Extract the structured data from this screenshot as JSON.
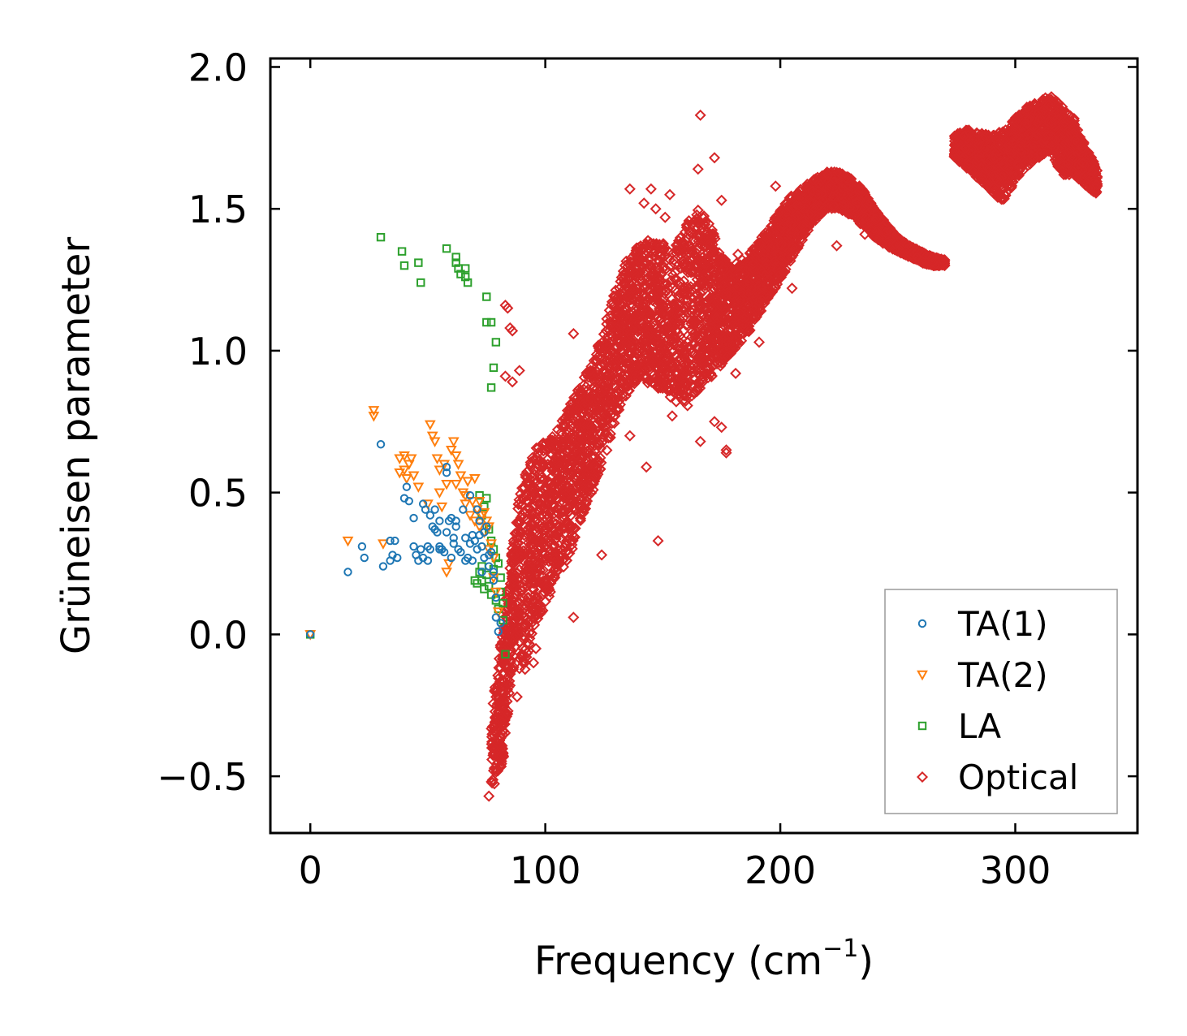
{
  "chart_data": {
    "type": "scatter",
    "title": "",
    "xlabel": "Frequency (cm",
    "xlabel_sup": "−1",
    "xlabel_close": ")",
    "ylabel": "Grüneisen parameter",
    "xlim": [
      -17,
      352
    ],
    "ylim": [
      -0.7,
      2.03
    ],
    "xticks": [
      0,
      100,
      200,
      300
    ],
    "yticks": [
      -0.5,
      0.0,
      0.5,
      1.0,
      1.5,
      2.0
    ],
    "xtick_labels": [
      "0",
      "100",
      "200",
      "300"
    ],
    "ytick_labels": [
      "−0.5",
      "0.0",
      "0.5",
      "1.0",
      "1.5",
      "2.0"
    ],
    "legend_position": "lower-right",
    "series": [
      {
        "name": "TA(1)",
        "marker": "circle",
        "color": "#1f77b4",
        "points": [
          [
            0,
            0.0
          ],
          [
            16,
            0.22
          ],
          [
            22,
            0.31
          ],
          [
            23,
            0.27
          ],
          [
            30,
            0.67
          ],
          [
            31,
            0.24
          ],
          [
            34,
            0.33
          ],
          [
            34,
            0.26
          ],
          [
            35,
            0.28
          ],
          [
            36,
            0.33
          ],
          [
            40,
            0.48
          ],
          [
            41,
            0.52
          ],
          [
            42,
            0.47
          ],
          [
            44,
            0.31
          ],
          [
            45,
            0.28
          ],
          [
            46,
            0.26
          ],
          [
            47,
            0.3
          ],
          [
            48,
            0.46
          ],
          [
            48,
            0.27
          ],
          [
            49,
            0.44
          ],
          [
            50,
            0.31
          ],
          [
            50,
            0.26
          ],
          [
            51,
            0.42
          ],
          [
            52,
            0.38
          ],
          [
            53,
            0.44
          ],
          [
            54,
            0.36
          ],
          [
            55,
            0.31
          ],
          [
            55,
            0.4
          ],
          [
            56,
            0.3
          ],
          [
            57,
            0.29
          ],
          [
            58,
            0.36
          ],
          [
            58,
            0.59
          ],
          [
            59,
            0.4
          ],
          [
            60,
            0.41
          ],
          [
            60,
            0.27
          ],
          [
            61,
            0.34
          ],
          [
            62,
            0.38
          ],
          [
            63,
            0.3
          ],
          [
            64,
            0.29
          ],
          [
            65,
            0.44
          ],
          [
            66,
            0.34
          ],
          [
            66,
            0.26
          ],
          [
            67,
            0.27
          ],
          [
            68,
            0.32
          ],
          [
            68,
            0.49
          ],
          [
            69,
            0.35
          ],
          [
            70,
            0.33
          ],
          [
            71,
            0.3
          ],
          [
            72,
            0.35
          ],
          [
            73,
            0.31
          ],
          [
            74,
            0.36
          ],
          [
            74,
            0.27
          ],
          [
            75,
            0.38
          ],
          [
            76,
            0.24
          ],
          [
            77,
            0.29
          ],
          [
            78,
            0.22
          ],
          [
            79,
            0.06
          ],
          [
            80,
            0.01
          ],
          [
            58,
            0.57
          ],
          [
            62,
            0.4
          ],
          [
            53,
            0.37
          ],
          [
            44,
            0.41
          ],
          [
            37,
            0.27
          ],
          [
            51,
            0.3
          ],
          [
            71,
            0.44
          ],
          [
            72,
            0.4
          ],
          [
            76,
            0.28
          ],
          [
            78,
            0.19
          ],
          [
            79,
            0.13
          ],
          [
            81,
            0.04
          ],
          [
            55,
            0.3
          ],
          [
            61,
            0.32
          ],
          [
            69,
            0.26
          ],
          [
            73,
            0.22
          ]
        ]
      },
      {
        "name": "TA(2)",
        "marker": "triangle-down",
        "color": "#ff7f0e",
        "points": [
          [
            0,
            0.0
          ],
          [
            16,
            0.33
          ],
          [
            27,
            0.79
          ],
          [
            27,
            0.77
          ],
          [
            31,
            0.32
          ],
          [
            38,
            0.62
          ],
          [
            38,
            0.57
          ],
          [
            40,
            0.58
          ],
          [
            40,
            0.63
          ],
          [
            41,
            0.55
          ],
          [
            42,
            0.6
          ],
          [
            43,
            0.62
          ],
          [
            44,
            0.56
          ],
          [
            46,
            0.52
          ],
          [
            50,
            0.46
          ],
          [
            51,
            0.74
          ],
          [
            52,
            0.7
          ],
          [
            53,
            0.68
          ],
          [
            54,
            0.62
          ],
          [
            55,
            0.58
          ],
          [
            55,
            0.5
          ],
          [
            56,
            0.45
          ],
          [
            57,
            0.6
          ],
          [
            58,
            0.53
          ],
          [
            58,
            0.22
          ],
          [
            59,
            0.25
          ],
          [
            60,
            0.65
          ],
          [
            61,
            0.68
          ],
          [
            62,
            0.63
          ],
          [
            63,
            0.6
          ],
          [
            64,
            0.56
          ],
          [
            65,
            0.5
          ],
          [
            66,
            0.46
          ],
          [
            67,
            0.54
          ],
          [
            68,
            0.42
          ],
          [
            69,
            0.47
          ],
          [
            70,
            0.4
          ],
          [
            70,
            0.55
          ],
          [
            71,
            0.44
          ],
          [
            72,
            0.38
          ],
          [
            73,
            0.42
          ],
          [
            74,
            0.36
          ],
          [
            75,
            0.4
          ],
          [
            76,
            0.3
          ],
          [
            77,
            0.32
          ],
          [
            78,
            0.2
          ],
          [
            79,
            0.15
          ],
          [
            80,
            0.08
          ],
          [
            62,
            0.53
          ],
          [
            66,
            0.49
          ],
          [
            72,
            0.47
          ],
          [
            74,
            0.43
          ],
          [
            76,
            0.38
          ],
          [
            78,
            0.27
          ]
        ]
      },
      {
        "name": "LA",
        "marker": "square",
        "color": "#2ca02c",
        "points": [
          [
            0,
            0.0
          ],
          [
            30,
            1.4
          ],
          [
            39,
            1.35
          ],
          [
            40,
            1.3
          ],
          [
            46,
            1.31
          ],
          [
            47,
            1.24
          ],
          [
            58,
            1.36
          ],
          [
            62,
            1.33
          ],
          [
            62,
            1.31
          ],
          [
            63,
            1.29
          ],
          [
            64,
            1.27
          ],
          [
            66,
            1.29
          ],
          [
            66,
            1.26
          ],
          [
            67,
            1.24
          ],
          [
            75,
            1.19
          ],
          [
            75,
            1.1
          ],
          [
            77,
            1.1
          ],
          [
            79,
            1.03
          ],
          [
            78,
            0.94
          ],
          [
            77,
            0.87
          ],
          [
            70,
            0.19
          ],
          [
            71,
            0.18
          ],
          [
            72,
            0.22
          ],
          [
            73,
            0.24
          ],
          [
            73,
            0.19
          ],
          [
            74,
            0.16
          ],
          [
            75,
            0.21
          ],
          [
            76,
            0.17
          ],
          [
            77,
            0.14
          ],
          [
            78,
            0.23
          ],
          [
            79,
            0.12
          ],
          [
            80,
            0.09
          ],
          [
            81,
            0.15
          ],
          [
            82,
            0.05
          ],
          [
            83,
            -0.07
          ],
          [
            74,
            0.45
          ],
          [
            75,
            0.48
          ],
          [
            76,
            0.37
          ],
          [
            77,
            0.33
          ],
          [
            78,
            0.3
          ],
          [
            79,
            0.27
          ],
          [
            80,
            0.25
          ],
          [
            81,
            0.2
          ],
          [
            82,
            0.11
          ],
          [
            72,
            0.49
          ],
          [
            73,
            0.42
          ]
        ]
      },
      {
        "name": "Optical",
        "marker": "diamond",
        "color": "#d62728",
        "bands": [
          {
            "x": [
              77,
              82,
              85,
              88,
              91,
              95,
              100,
              105,
              110,
              115,
              120,
              125,
              130,
              135,
              140,
              145,
              150,
              155,
              160,
              165,
              170,
              175,
              180,
              185,
              190,
              195,
              200,
              205,
              210,
              215,
              220,
              225,
              230,
              235,
              240,
              245,
              250,
              255,
              260,
              265,
              270
            ],
            "lo": [
              -0.57,
              -0.45,
              -0.2,
              -0.05,
              -0.15,
              0.02,
              0.1,
              0.2,
              0.26,
              0.4,
              0.5,
              0.62,
              0.74,
              0.85,
              0.9,
              0.88,
              0.86,
              0.82,
              0.8,
              0.85,
              0.9,
              0.95,
              1.0,
              1.05,
              1.1,
              1.18,
              1.25,
              1.32,
              1.4,
              1.46,
              1.5,
              1.5,
              1.47,
              1.44,
              1.4,
              1.37,
              1.35,
              1.33,
              1.31,
              1.3,
              1.3
            ],
            "hi": [
              -0.3,
              0.05,
              0.25,
              0.45,
              0.55,
              0.65,
              0.68,
              0.72,
              0.8,
              0.88,
              0.98,
              1.08,
              1.22,
              1.35,
              1.38,
              1.4,
              1.38,
              1.36,
              1.45,
              1.5,
              1.45,
              1.33,
              1.3,
              1.33,
              1.38,
              1.43,
              1.5,
              1.55,
              1.58,
              1.61,
              1.63,
              1.63,
              1.61,
              1.57,
              1.5,
              1.45,
              1.4,
              1.37,
              1.35,
              1.33,
              1.32
            ],
            "n": 5200,
            "seed": 7
          },
          {
            "x": [
              274,
              280,
              290,
              295,
              300,
              305,
              310,
              315,
              320,
              325,
              330,
              335
            ],
            "lo": [
              1.68,
              1.64,
              1.56,
              1.52,
              1.6,
              1.65,
              1.68,
              1.7,
              1.62,
              1.62,
              1.58,
              1.55
            ],
            "hi": [
              1.76,
              1.78,
              1.76,
              1.78,
              1.82,
              1.86,
              1.88,
              1.9,
              1.86,
              1.82,
              1.72,
              1.64
            ],
            "n": 1600,
            "seed": 13
          }
        ],
        "points": [
          [
            166,
            1.83
          ],
          [
            172,
            1.68
          ],
          [
            165,
            1.64
          ],
          [
            136,
            1.57
          ],
          [
            145,
            1.57
          ],
          [
            153,
            1.55
          ],
          [
            175,
            1.53
          ],
          [
            198,
            1.58
          ],
          [
            142,
            1.52
          ],
          [
            147,
            1.5
          ],
          [
            151,
            1.47
          ],
          [
            83,
            1.16
          ],
          [
            85,
            1.08
          ],
          [
            86,
            1.07
          ],
          [
            83,
            0.91
          ],
          [
            86,
            0.89
          ],
          [
            89,
            0.93
          ],
          [
            112,
            1.06
          ],
          [
            128,
            1.0
          ],
          [
            125,
            0.95
          ],
          [
            148,
            0.33
          ],
          [
            143,
            0.59
          ],
          [
            124,
            0.28
          ],
          [
            177,
            0.65
          ],
          [
            177,
            0.64
          ],
          [
            166,
            0.68
          ],
          [
            172,
            0.75
          ],
          [
            175,
            0.73
          ],
          [
            154,
            0.77
          ],
          [
            136,
            0.7
          ],
          [
            131,
            0.8
          ],
          [
            119,
            0.52
          ],
          [
            109,
            0.29
          ],
          [
            104,
            0.2
          ],
          [
            112,
            0.06
          ],
          [
            96,
            -0.05
          ],
          [
            92,
            -0.08
          ],
          [
            95,
            -0.1
          ],
          [
            89,
            -0.12
          ],
          [
            85,
            -0.18
          ],
          [
            82,
            -0.2
          ],
          [
            80,
            -0.23
          ],
          [
            79,
            -0.35
          ],
          [
            78,
            -0.4
          ],
          [
            80,
            -0.45
          ],
          [
            76,
            -0.57
          ],
          [
            78,
            -0.48
          ],
          [
            84,
            -0.28
          ],
          [
            88,
            -0.22
          ],
          [
            84,
            1.15
          ],
          [
            241,
            1.42
          ],
          [
            236,
            1.41
          ],
          [
            224,
            1.37
          ],
          [
            212,
            1.48
          ],
          [
            228,
            1.58
          ],
          [
            200,
            1.49
          ],
          [
            185,
            1.27
          ],
          [
            190,
            1.21
          ],
          [
            205,
            1.22
          ],
          [
            182,
            1.34
          ],
          [
            191,
            1.03
          ],
          [
            181,
            0.92
          ],
          [
            160,
            1.09
          ],
          [
            157,
            0.97
          ],
          [
            162,
            1.19
          ]
        ]
      }
    ]
  }
}
